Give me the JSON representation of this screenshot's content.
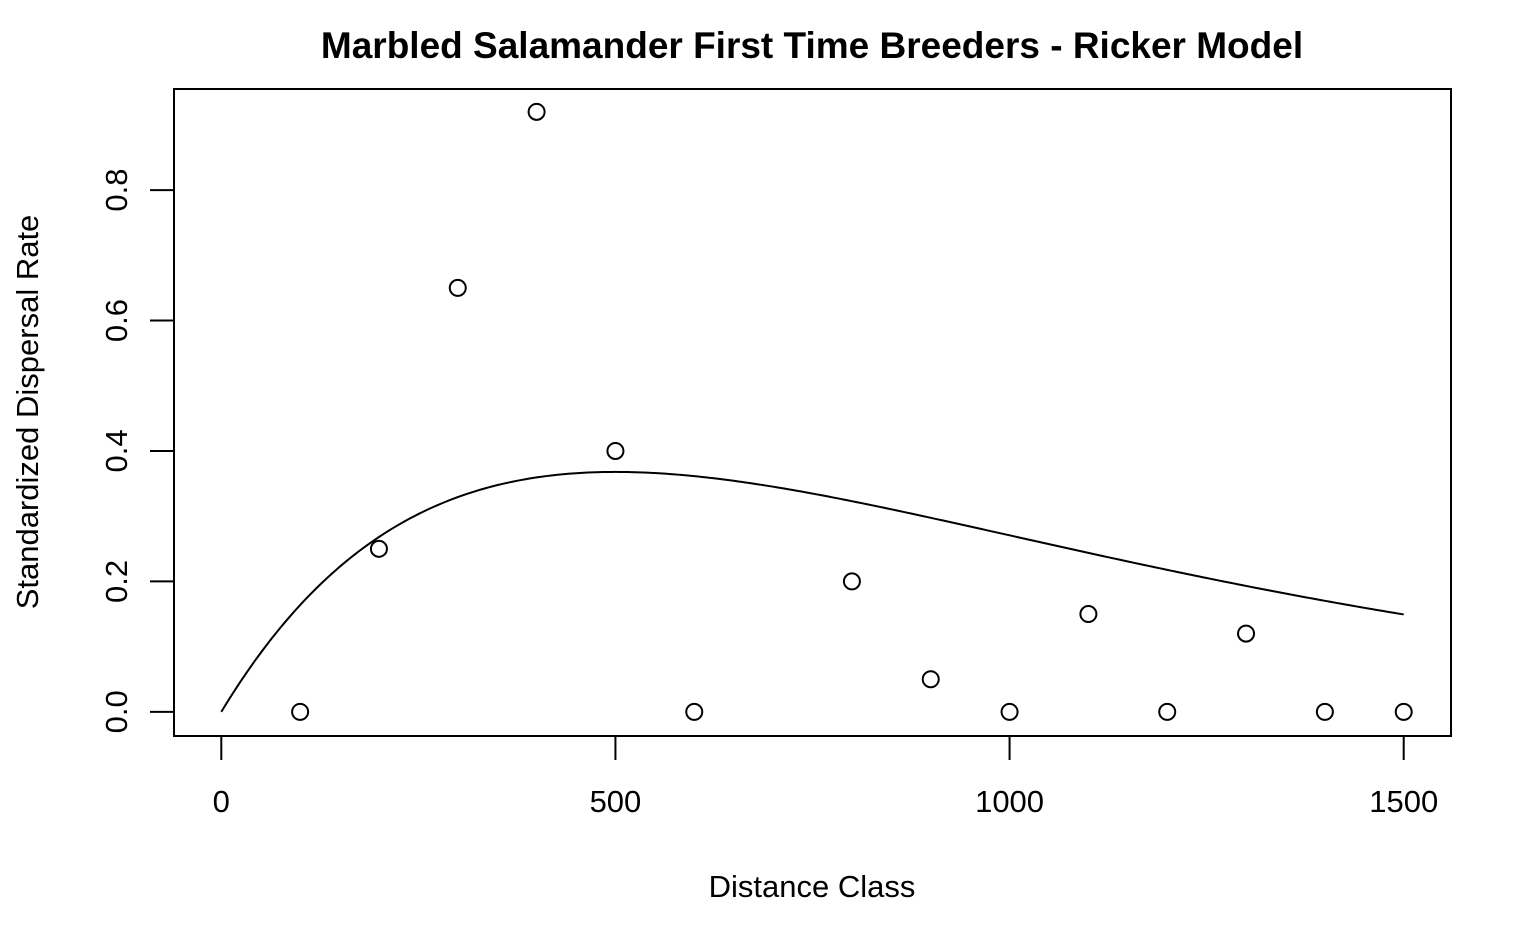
{
  "chart_data": {
    "type": "scatter",
    "title": "Marbled Salamander First Time Breeders - Ricker Model",
    "xlabel": "Distance Class",
    "ylabel": "Standardized Dispersal Rate",
    "xlim": [
      -60,
      1560
    ],
    "ylim": [
      -0.037,
      0.955
    ],
    "x_ticks": [
      0,
      500,
      1000,
      1500
    ],
    "x_tick_labels": [
      "0",
      "500",
      "1000",
      "1500"
    ],
    "y_ticks": [
      0.0,
      0.2,
      0.4,
      0.6,
      0.8
    ],
    "y_tick_labels": [
      "0.0",
      "0.2",
      "0.4",
      "0.6",
      "0.8"
    ],
    "grid": false,
    "series": [
      {
        "kind": "points",
        "x": [
          100,
          200,
          300,
          400,
          500,
          600,
          800,
          900,
          1000,
          1100,
          1200,
          1300,
          1400,
          1500
        ],
        "y": [
          0.0,
          0.25,
          0.65,
          0.92,
          0.4,
          0.0,
          0.2,
          0.05,
          0.0,
          0.15,
          0.0,
          0.12,
          0.0,
          0.0
        ]
      },
      {
        "kind": "line",
        "model": "ricker",
        "a": 0.002,
        "b": 0.002,
        "x_range": [
          0,
          1500
        ]
      }
    ]
  }
}
